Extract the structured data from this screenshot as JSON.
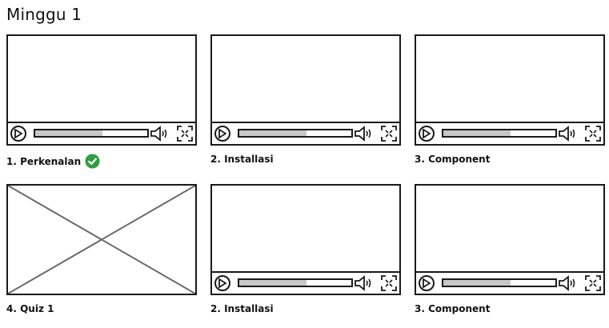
{
  "page": {
    "title": "Minggu 1"
  },
  "videos": [
    {
      "label": "1. Perkenalan",
      "completed": true,
      "progress": 0.6,
      "kind": "video"
    },
    {
      "label": "2. Installasi",
      "completed": false,
      "progress": 0.6,
      "kind": "video"
    },
    {
      "label": "3. Component",
      "completed": false,
      "progress": 0.6,
      "kind": "video"
    },
    {
      "label": "4. Quiz 1",
      "completed": false,
      "kind": "image-placeholder"
    },
    {
      "label": "2. Installasi",
      "completed": false,
      "progress": 0.6,
      "kind": "video"
    },
    {
      "label": "3. Component",
      "completed": false,
      "progress": 0.6,
      "kind": "video"
    }
  ],
  "colors": {
    "check": "#2e9e3f",
    "progress_fill": "#c8c8c8",
    "stroke": "#1a1a1a"
  },
  "icons": {
    "play": "play-icon",
    "volume": "speaker-icon",
    "fullscreen": "fullscreen-icon",
    "completed": "check-circle-icon"
  }
}
